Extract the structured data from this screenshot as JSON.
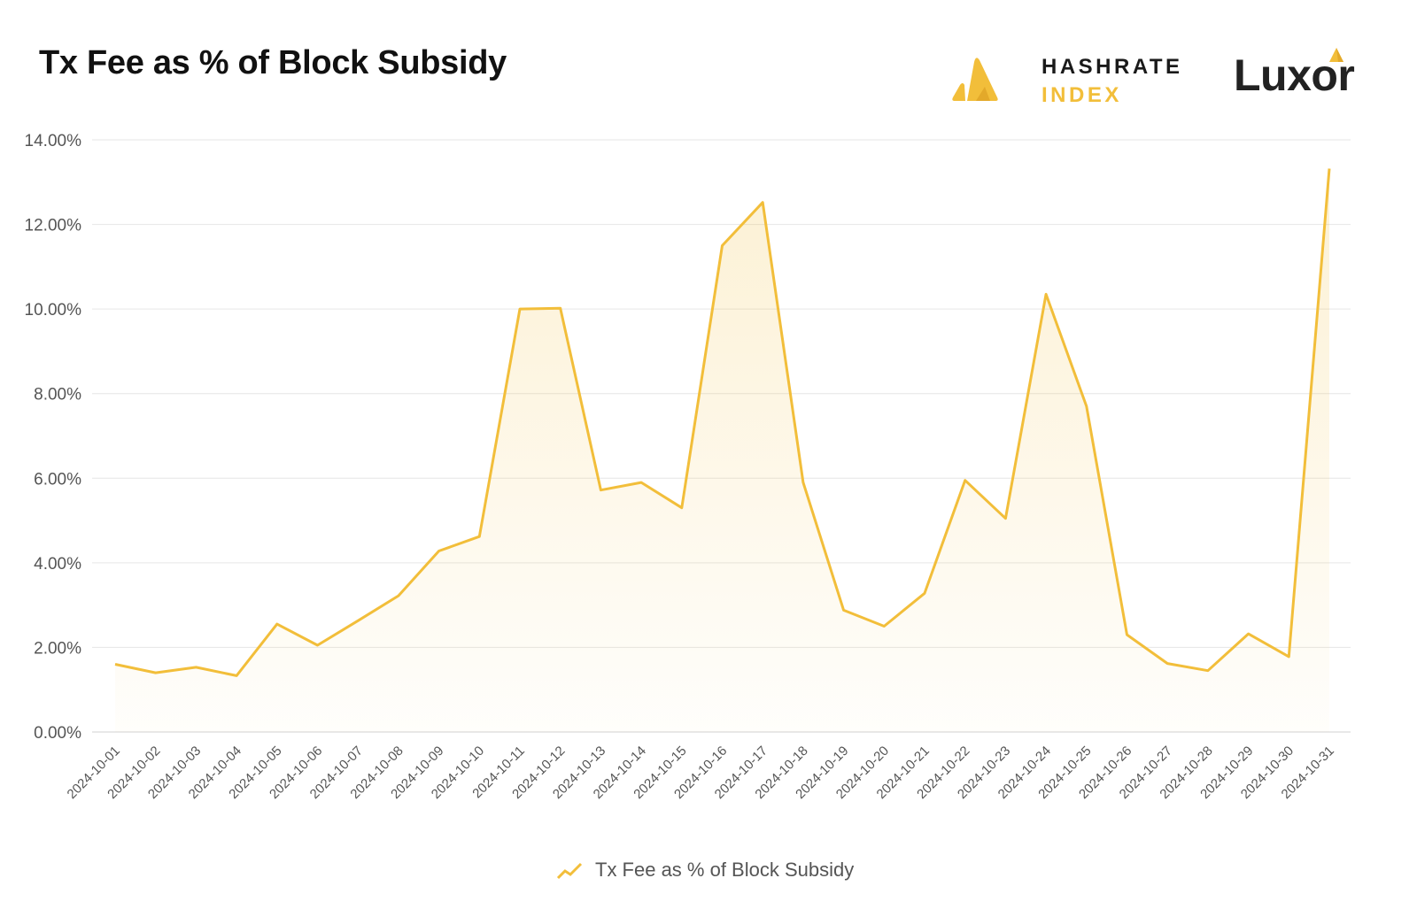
{
  "header": {
    "title": "Tx Fee as % of Block Subsidy",
    "logo1_line1": "HASHRATE",
    "logo1_line2": "INDEX",
    "logo2": "Luxor"
  },
  "colors": {
    "line": "#f2be3a",
    "grid": "#e6e6e6",
    "axis_text": "#555555"
  },
  "chart_data": {
    "type": "area",
    "x": [
      "2024-10-01",
      "2024-10-02",
      "2024-10-03",
      "2024-10-04",
      "2024-10-05",
      "2024-10-06",
      "2024-10-07",
      "2024-10-08",
      "2024-10-09",
      "2024-10-10",
      "2024-10-11",
      "2024-10-12",
      "2024-10-13",
      "2024-10-14",
      "2024-10-15",
      "2024-10-16",
      "2024-10-17",
      "2024-10-18",
      "2024-10-19",
      "2024-10-20",
      "2024-10-21",
      "2024-10-22",
      "2024-10-23",
      "2024-10-24",
      "2024-10-25",
      "2024-10-26",
      "2024-10-27",
      "2024-10-28",
      "2024-10-29",
      "2024-10-30",
      "2024-10-31"
    ],
    "series": [
      {
        "name": "Tx Fee as % of Block Subsidy",
        "values": [
          1.6,
          1.4,
          1.53,
          1.33,
          2.55,
          2.05,
          2.63,
          3.22,
          4.28,
          4.62,
          10.0,
          10.02,
          5.72,
          5.9,
          5.3,
          11.5,
          12.52,
          5.9,
          2.88,
          2.5,
          3.28,
          5.95,
          5.05,
          10.35,
          7.7,
          2.3,
          1.62,
          1.45,
          2.32,
          1.78,
          13.32
        ]
      }
    ],
    "yticks": [
      "0.00%",
      "2.00%",
      "4.00%",
      "6.00%",
      "8.00%",
      "10.00%",
      "12.00%",
      "14.00%"
    ],
    "ylim": [
      0,
      14
    ],
    "grid": true,
    "legend": "bottom-center"
  }
}
